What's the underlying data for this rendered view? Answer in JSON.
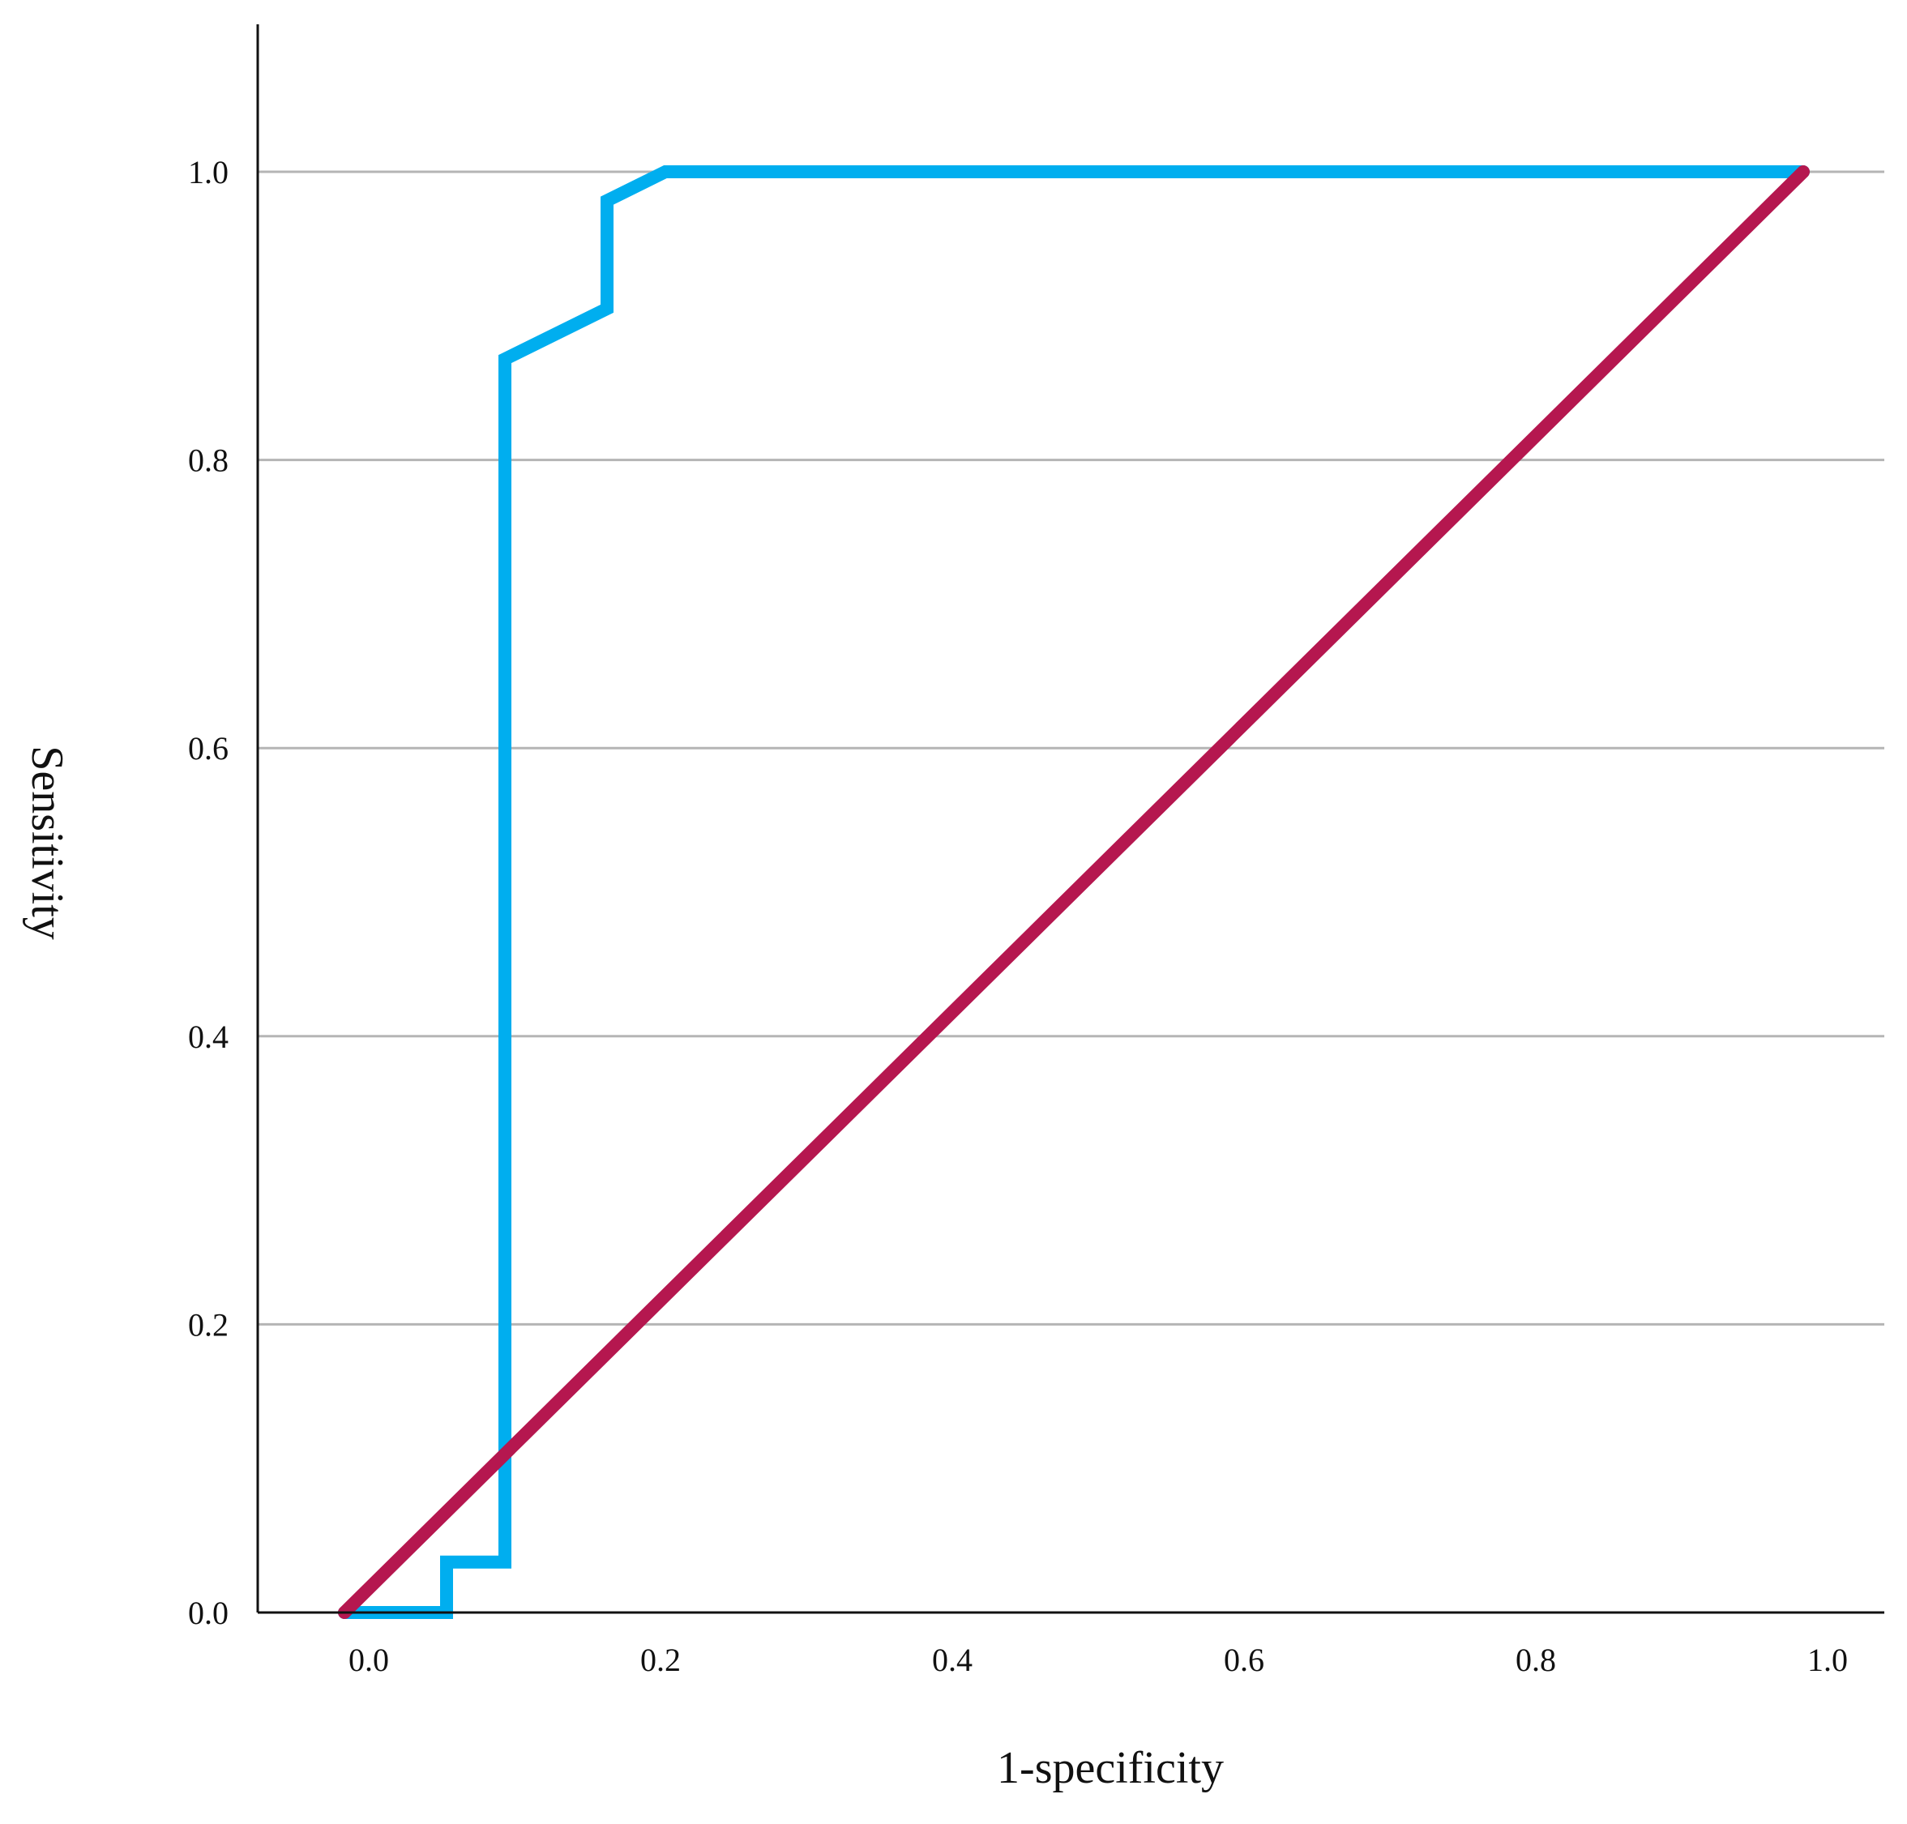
{
  "chart_data": {
    "type": "line",
    "title": "",
    "xlabel": "1-specificity",
    "ylabel": "Sensitivity",
    "xlim": [
      -0.02,
      1.04
    ],
    "ylim": [
      0,
      1.1
    ],
    "x_ticks": [
      "0.0",
      "0.2",
      "0.4",
      "0.6",
      "0.8",
      "1.0"
    ],
    "y_ticks": [
      "0.0",
      "0.2",
      "0.4",
      "0.6",
      "0.8",
      "1.0"
    ],
    "grid": "horizontal",
    "legend": "none",
    "series": [
      {
        "color": "#00AEEF",
        "points": [
          [
            0.0,
            0.0
          ],
          [
            0.07,
            0.0
          ],
          [
            0.07,
            0.035
          ],
          [
            0.11,
            0.035
          ],
          [
            0.11,
            0.87
          ],
          [
            0.18,
            0.905
          ],
          [
            0.18,
            0.98
          ],
          [
            0.22,
            1.0
          ],
          [
            1.0,
            1.0
          ]
        ]
      },
      {
        "color": "#B5174F",
        "points": [
          [
            0.0,
            0.0
          ],
          [
            1.0,
            1.0
          ]
        ]
      }
    ]
  }
}
